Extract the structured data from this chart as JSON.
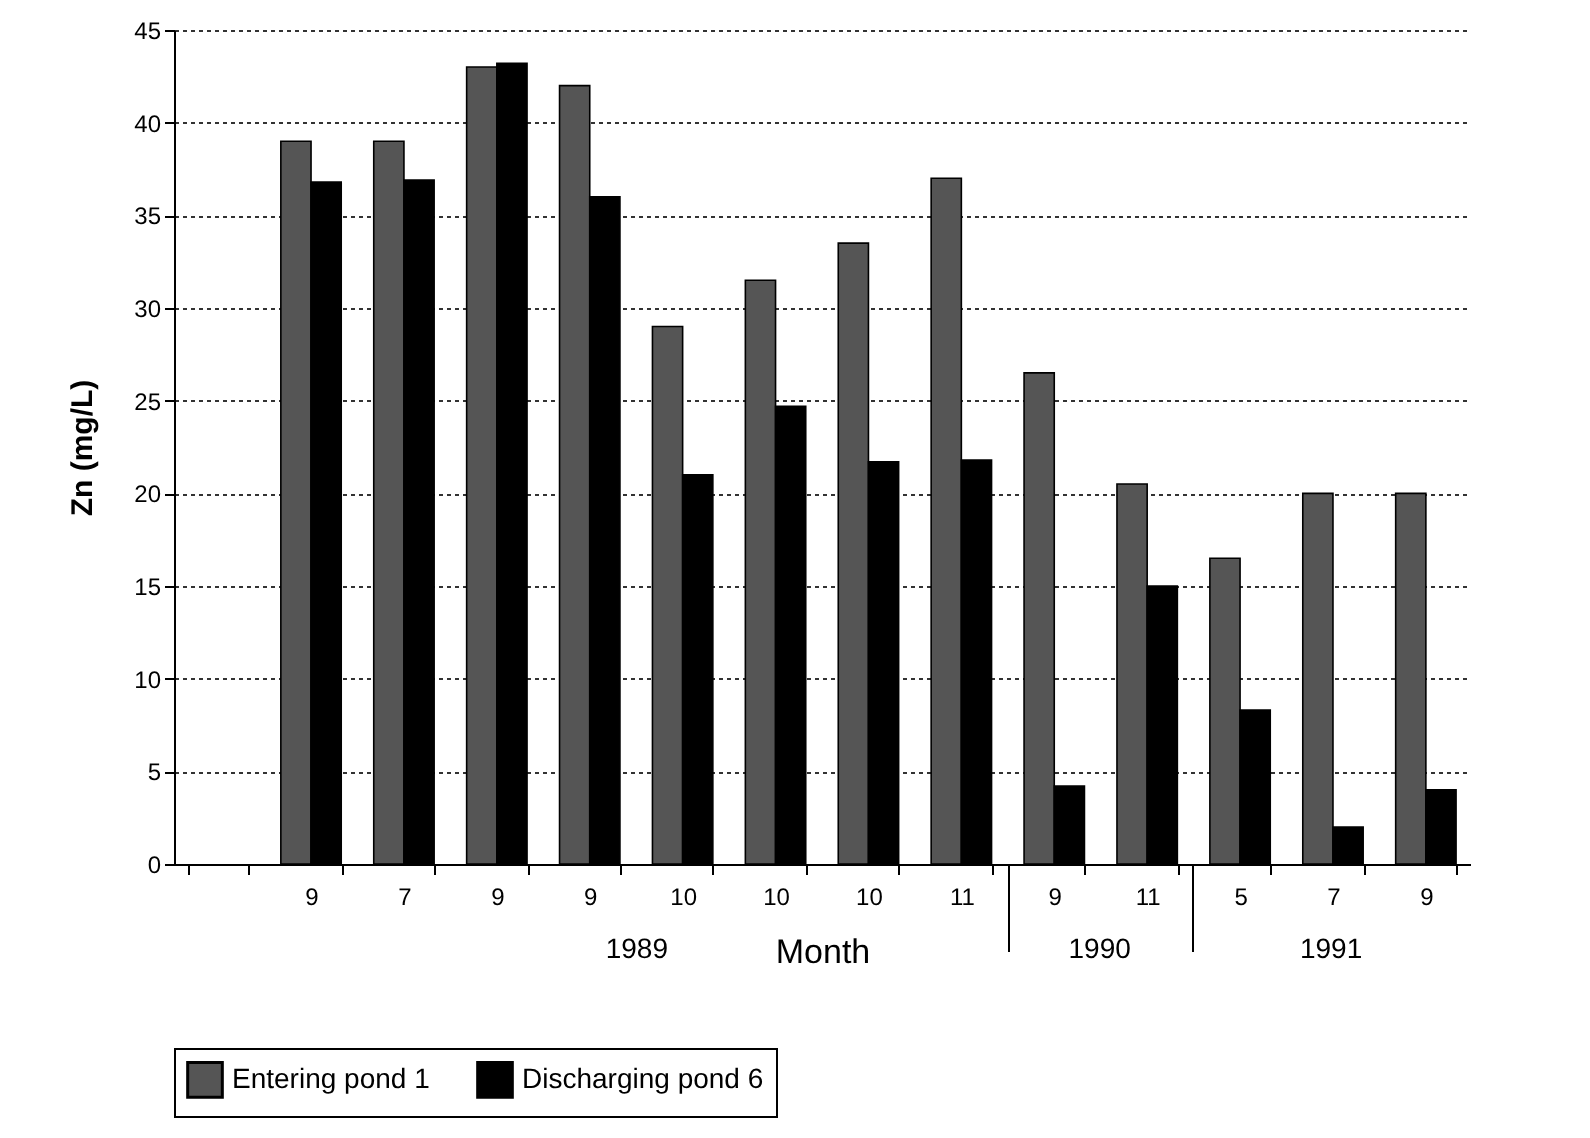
{
  "chart_data": {
    "type": "bar",
    "xlabel": "Month",
    "ylabel": "Zn (mg/L)",
    "categories": [
      null,
      "9",
      "7",
      "9",
      "9",
      "10",
      "10",
      "10",
      "11",
      "9",
      "11",
      "5",
      "7",
      "9"
    ],
    "series": [
      {
        "name": "Entering pond 1",
        "color": "#555555",
        "values": [
          null,
          39,
          39,
          43,
          42,
          29,
          31.5,
          33.5,
          37,
          26.5,
          20.5,
          16.5,
          20,
          20
        ]
      },
      {
        "name": "Discharging pond 6",
        "color": "#000000",
        "values": [
          null,
          36.8,
          36.9,
          43.2,
          36,
          21,
          24.7,
          21.7,
          21.8,
          4.2,
          15,
          8.3,
          2,
          4
        ]
      }
    ],
    "ylim": [
      0,
      45
    ],
    "yticks": [
      0,
      5,
      10,
      15,
      20,
      25,
      30,
      35,
      40,
      45
    ],
    "grid": "y",
    "legend": "bottom",
    "annotations": [
      "1989",
      "1990",
      "1991"
    ]
  }
}
